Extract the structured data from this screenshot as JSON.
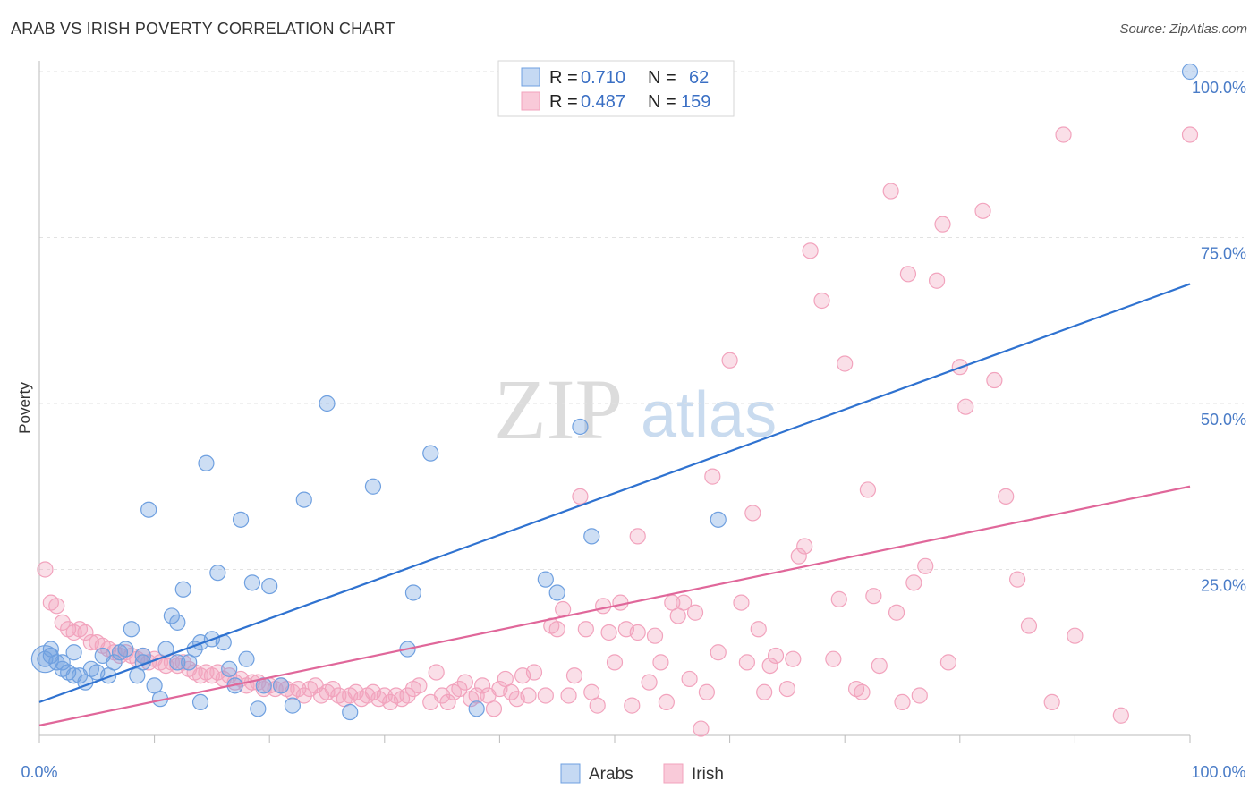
{
  "title": "ARAB VS IRISH POVERTY CORRELATION CHART",
  "source": "Source: ZipAtlas.com",
  "watermark": {
    "zip": "ZIP",
    "atlas": "atlas"
  },
  "chart_data": {
    "type": "scatter",
    "title": "ARAB VS IRISH POVERTY CORRELATION CHART",
    "ylabel": "Poverty",
    "xlabel": "",
    "xlim": [
      0,
      100
    ],
    "ylim": [
      0,
      100
    ],
    "x_tick_labels": {
      "left": "0.0%",
      "right": "100.0%"
    },
    "y_ticks": [
      {
        "value": 25,
        "label": "25.0%"
      },
      {
        "value": 50,
        "label": "50.0%"
      },
      {
        "value": 75,
        "label": "75.0%"
      },
      {
        "value": 100,
        "label": "100.0%"
      }
    ],
    "legend": {
      "r_label": "R =",
      "n_label": "N =",
      "entries": [
        {
          "r": "0.710",
          "n": "62"
        },
        {
          "r": "0.487",
          "n": "159"
        }
      ]
    },
    "series": [
      {
        "name": "Arabs",
        "color": "#6fa0e0",
        "line_color": "#2f72d0",
        "trend": {
          "x0": 0,
          "y0": 5,
          "x1": 100,
          "y1": 68
        },
        "points": [
          [
            0.5,
            11.5
          ],
          [
            1,
            12
          ],
          [
            1.5,
            11
          ],
          [
            2,
            10
          ],
          [
            2.5,
            9.5
          ],
          [
            3,
            9
          ],
          [
            3.5,
            9
          ],
          [
            4,
            8
          ],
          [
            4.5,
            10
          ],
          [
            5,
            9.5
          ],
          [
            6,
            9
          ],
          [
            6.5,
            11
          ],
          [
            7,
            12.5
          ],
          [
            7.5,
            13
          ],
          [
            8,
            16
          ],
          [
            8.5,
            9
          ],
          [
            9,
            11
          ],
          [
            9.5,
            34
          ],
          [
            10,
            7.5
          ],
          [
            10.5,
            5.5
          ],
          [
            11,
            13
          ],
          [
            11.5,
            18
          ],
          [
            12,
            17
          ],
          [
            12.5,
            22
          ],
          [
            13,
            11
          ],
          [
            13.5,
            13
          ],
          [
            14,
            5
          ],
          [
            14,
            14
          ],
          [
            14.5,
            41
          ],
          [
            15,
            14.5
          ],
          [
            15.5,
            24.5
          ],
          [
            16,
            14
          ],
          [
            16.5,
            10
          ],
          [
            17,
            7.5
          ],
          [
            17.5,
            32.5
          ],
          [
            18,
            11.5
          ],
          [
            18.5,
            23
          ],
          [
            19,
            4
          ],
          [
            19.5,
            7.5
          ],
          [
            20,
            22.5
          ],
          [
            21,
            7.5
          ],
          [
            22,
            4.5
          ],
          [
            23,
            35.5
          ],
          [
            25,
            50
          ],
          [
            27,
            3.5
          ],
          [
            29,
            37.5
          ],
          [
            32,
            13
          ],
          [
            32.5,
            21.5
          ],
          [
            34,
            42.5
          ],
          [
            38,
            4
          ],
          [
            44,
            23.5
          ],
          [
            45,
            21.5
          ],
          [
            47,
            46.5
          ],
          [
            48,
            30
          ],
          [
            59,
            32.5
          ],
          [
            100,
            100
          ],
          [
            1,
            13
          ],
          [
            3,
            12.5
          ],
          [
            5.5,
            12
          ],
          [
            9,
            12
          ],
          [
            12,
            11
          ],
          [
            2,
            11
          ]
        ]
      },
      {
        "name": "Irish",
        "color": "#f2a3bd",
        "line_color": "#e0679a",
        "trend": {
          "x0": 0,
          "y0": 1.5,
          "x1": 100,
          "y1": 37.5
        },
        "points": [
          [
            0.5,
            25
          ],
          [
            1,
            20
          ],
          [
            1.5,
            19.5
          ],
          [
            2,
            17
          ],
          [
            2.5,
            16
          ],
          [
            3,
            15.5
          ],
          [
            3.5,
            16
          ],
          [
            4,
            15.5
          ],
          [
            4.5,
            14
          ],
          [
            5,
            14
          ],
          [
            5.5,
            13.5
          ],
          [
            6,
            13
          ],
          [
            6.5,
            12.5
          ],
          [
            7,
            12
          ],
          [
            7.5,
            12.5
          ],
          [
            8,
            12
          ],
          [
            8.5,
            11.5
          ],
          [
            9,
            12
          ],
          [
            9.5,
            11
          ],
          [
            10,
            11.5
          ],
          [
            10.5,
            11
          ],
          [
            11,
            10.5
          ],
          [
            11.5,
            11
          ],
          [
            12,
            10.5
          ],
          [
            12.5,
            11
          ],
          [
            13,
            10
          ],
          [
            13.5,
            9.5
          ],
          [
            14,
            9
          ],
          [
            14.5,
            9.5
          ],
          [
            15,
            9
          ],
          [
            15.5,
            9.5
          ],
          [
            16,
            8.5
          ],
          [
            16.5,
            9
          ],
          [
            17,
            8
          ],
          [
            17.5,
            8.5
          ],
          [
            18,
            7.5
          ],
          [
            18.5,
            8
          ],
          [
            19,
            8
          ],
          [
            19.5,
            7
          ],
          [
            20,
            7.5
          ],
          [
            20.5,
            7
          ],
          [
            21,
            7.5
          ],
          [
            21.5,
            7
          ],
          [
            22,
            6.5
          ],
          [
            22.5,
            7
          ],
          [
            23,
            6
          ],
          [
            23.5,
            7
          ],
          [
            24,
            7.5
          ],
          [
            24.5,
            6
          ],
          [
            25,
            6.5
          ],
          [
            25.5,
            7
          ],
          [
            26,
            6
          ],
          [
            26.5,
            5.5
          ],
          [
            27,
            6
          ],
          [
            27.5,
            6.5
          ],
          [
            28,
            5.5
          ],
          [
            28.5,
            6
          ],
          [
            29,
            6.5
          ],
          [
            29.5,
            5.5
          ],
          [
            30,
            6
          ],
          [
            30.5,
            5
          ],
          [
            31,
            6
          ],
          [
            31.5,
            5.5
          ],
          [
            32,
            6
          ],
          [
            32.5,
            7
          ],
          [
            33,
            7.5
          ],
          [
            34,
            5
          ],
          [
            34.5,
            9.5
          ],
          [
            35,
            6
          ],
          [
            35.5,
            5
          ],
          [
            36,
            6.5
          ],
          [
            36.5,
            7
          ],
          [
            37,
            8
          ],
          [
            37.5,
            5.5
          ],
          [
            38,
            6
          ],
          [
            38.5,
            7.5
          ],
          [
            39,
            6
          ],
          [
            39.5,
            4
          ],
          [
            40,
            7
          ],
          [
            40.5,
            8.5
          ],
          [
            41,
            6.5
          ],
          [
            41.5,
            5.5
          ],
          [
            42,
            9
          ],
          [
            42.5,
            6
          ],
          [
            43,
            9.5
          ],
          [
            44,
            6
          ],
          [
            44.5,
            16.5
          ],
          [
            45,
            16
          ],
          [
            45.5,
            19
          ],
          [
            46,
            6
          ],
          [
            46.5,
            9
          ],
          [
            47,
            36
          ],
          [
            47.5,
            16
          ],
          [
            48,
            6.5
          ],
          [
            48.5,
            4.5
          ],
          [
            49,
            19.5
          ],
          [
            49.5,
            15.5
          ],
          [
            50,
            11
          ],
          [
            50.5,
            20
          ],
          [
            51,
            16
          ],
          [
            51.5,
            4.5
          ],
          [
            52,
            30
          ],
          [
            52,
            15.5
          ],
          [
            53,
            8
          ],
          [
            53.5,
            15
          ],
          [
            54,
            11
          ],
          [
            54.5,
            5
          ],
          [
            55,
            20
          ],
          [
            55.5,
            18
          ],
          [
            56,
            20
          ],
          [
            56.5,
            8.5
          ],
          [
            57,
            18.5
          ],
          [
            57.5,
            1
          ],
          [
            58,
            6.5
          ],
          [
            58.5,
            39
          ],
          [
            59,
            12.5
          ],
          [
            60,
            56.5
          ],
          [
            61,
            20
          ],
          [
            61.5,
            11
          ],
          [
            62,
            33.5
          ],
          [
            62.5,
            16
          ],
          [
            63,
            6.5
          ],
          [
            63.5,
            10.5
          ],
          [
            64,
            12
          ],
          [
            65,
            7
          ],
          [
            65.5,
            11.5
          ],
          [
            66,
            27
          ],
          [
            66.5,
            28.5
          ],
          [
            67,
            73
          ],
          [
            68,
            65.5
          ],
          [
            69,
            11.5
          ],
          [
            69.5,
            20.5
          ],
          [
            70,
            56
          ],
          [
            71,
            7
          ],
          [
            71.5,
            6.5
          ],
          [
            72,
            37
          ],
          [
            72.5,
            21
          ],
          [
            73,
            10.5
          ],
          [
            74,
            82
          ],
          [
            74.5,
            18.5
          ],
          [
            75,
            5
          ],
          [
            75.5,
            69.5
          ],
          [
            76,
            23
          ],
          [
            76.5,
            6
          ],
          [
            77,
            25.5
          ],
          [
            78,
            68.5
          ],
          [
            78.5,
            77
          ],
          [
            79,
            11
          ],
          [
            80,
            55.5
          ],
          [
            80.5,
            49.5
          ]
        ],
        "extra_points": [
          [
            82,
            79
          ],
          [
            83,
            53.5
          ],
          [
            84,
            36
          ],
          [
            85,
            23.5
          ],
          [
            86,
            16.5
          ],
          [
            88,
            5
          ],
          [
            89,
            90.5
          ],
          [
            90,
            15
          ],
          [
            94,
            3
          ],
          [
            100,
            90.5
          ]
        ]
      }
    ]
  },
  "bottom_legend": {
    "arabs": "Arabs",
    "irish": "Irish"
  }
}
